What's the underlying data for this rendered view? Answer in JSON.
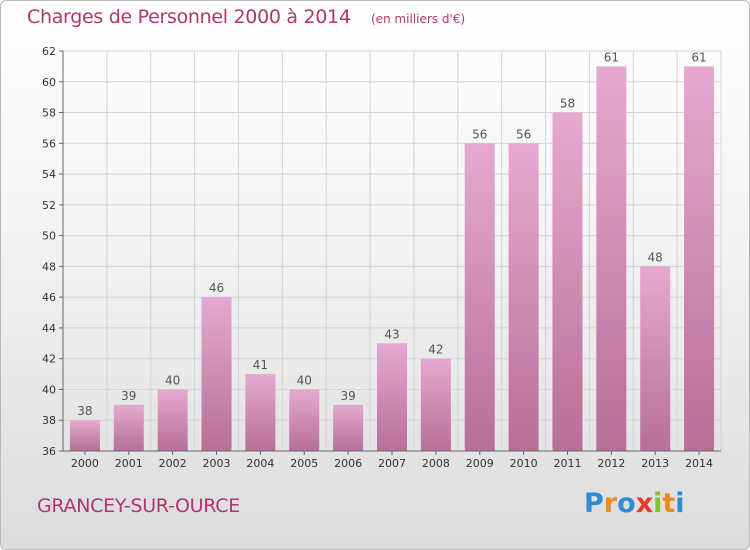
{
  "header": {
    "title": "Charges de Personnel 2000 à 2014",
    "subtitle": "(en milliers d'€)"
  },
  "footer": {
    "commune": "GRANCEY-SUR-OURCE",
    "brand": "Proxiti",
    "brand_letters": [
      {
        "char": "P",
        "color": "#2e8bd6"
      },
      {
        "char": "r",
        "color": "#f08a1c"
      },
      {
        "char": "o",
        "color": "#2e8bd6"
      },
      {
        "char": "x",
        "color": "#e8372b"
      },
      {
        "char": "i",
        "color": "#8bbf2a"
      },
      {
        "char": "t",
        "color": "#f08a1c"
      },
      {
        "char": "i",
        "color": "#2e8bd6"
      }
    ]
  },
  "chart_data": {
    "type": "bar",
    "categories": [
      "2000",
      "2001",
      "2002",
      "2003",
      "2004",
      "2005",
      "2006",
      "2007",
      "2008",
      "2009",
      "2010",
      "2011",
      "2012",
      "2013",
      "2014"
    ],
    "values": [
      38,
      39,
      40,
      46,
      41,
      40,
      39,
      43,
      42,
      56,
      56,
      58,
      61,
      48,
      61
    ],
    "title": "Charges de Personnel 2000 à 2014",
    "subtitle": "(en milliers d'€)",
    "ylim": [
      36,
      62
    ],
    "yticks": [
      36,
      38,
      40,
      42,
      44,
      46,
      48,
      50,
      52,
      54,
      56,
      58,
      60,
      62
    ],
    "grid": true,
    "data_labels": true,
    "colors": {
      "bar_top": "#e6a9cf",
      "bar_bottom": "#b66f98",
      "grid": "#d4d4d4",
      "axis": "#666666"
    }
  }
}
